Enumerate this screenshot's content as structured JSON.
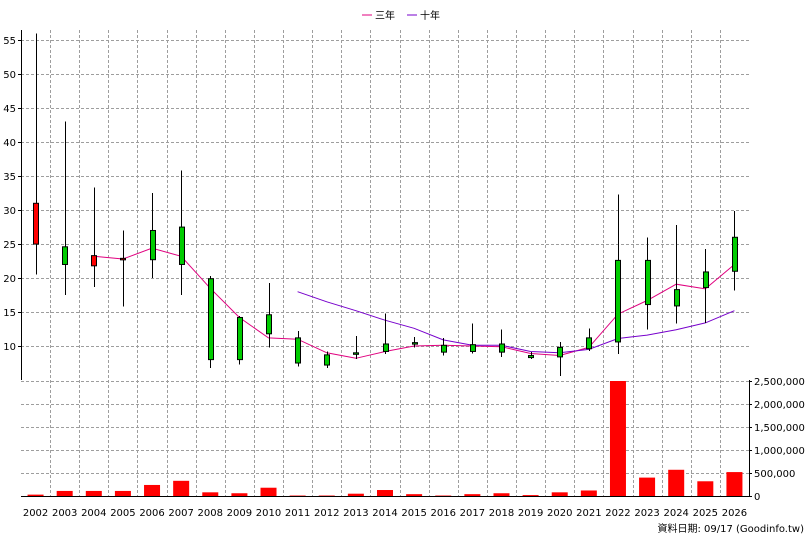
{
  "chart_data": {
    "type": "candlestick+bar",
    "legend": [
      {
        "name": "三年",
        "color": "#e0007f"
      },
      {
        "name": "十年",
        "color": "#7700cc"
      }
    ],
    "legend_position": "top-center",
    "grid": true,
    "years": [
      "2002",
      "2003",
      "2004",
      "2005",
      "2006",
      "2007",
      "2008",
      "2009",
      "2010",
      "2011",
      "2012",
      "2013",
      "2014",
      "2015",
      "2016",
      "2017",
      "2018",
      "2019",
      "2020",
      "2021",
      "2022",
      "2023",
      "2024",
      "2025",
      "2026"
    ],
    "price_axis": {
      "ylim": [
        5,
        56.5
      ],
      "ticks": [
        10,
        15,
        20,
        25,
        30,
        35,
        40,
        45,
        50,
        55
      ],
      "position": "left"
    },
    "volume_axis": {
      "ylim": [
        0,
        2500000
      ],
      "ticks": [
        0,
        500000,
        1000000,
        1500000,
        2000000,
        2500000
      ],
      "tick_labels": [
        "0",
        "500,000",
        "1,000,000",
        "1,500,000",
        "2,000,000",
        "2,500,000"
      ],
      "position": "right"
    },
    "candles": [
      {
        "open": 25,
        "close": 31,
        "high": 56,
        "low": 20.5
      },
      {
        "open": 24.6,
        "close": 22,
        "high": 43,
        "low": 17.5
      },
      {
        "open": 21.8,
        "close": 23.3,
        "high": 33.3,
        "low": 18.7
      },
      {
        "open": 22.8,
        "close": 22.9,
        "high": 27,
        "low": 15.8
      },
      {
        "open": 27,
        "close": 22.7,
        "high": 32.5,
        "low": 20
      },
      {
        "open": 27.5,
        "close": 22,
        "high": 35.8,
        "low": 17.5
      },
      {
        "open": 19.9,
        "close": 8,
        "high": 20.3,
        "low": 6.8
      },
      {
        "open": 14.2,
        "close": 8,
        "high": 14.4,
        "low": 7.3
      },
      {
        "open": 14.6,
        "close": 11.8,
        "high": 19.3,
        "low": 9.8
      },
      {
        "open": 11.2,
        "close": 7.5,
        "high": 12.2,
        "low": 7
      },
      {
        "open": 8.7,
        "close": 7.2,
        "high": 9.2,
        "low": 6.8
      },
      {
        "open": 9,
        "close": 8.9,
        "high": 11.5,
        "low": 8.1
      },
      {
        "open": 10.3,
        "close": 9.2,
        "high": 14.8,
        "low": 8.8
      },
      {
        "open": 10.5,
        "close": 10.3,
        "high": 11.3,
        "low": 9.8
      },
      {
        "open": 10.1,
        "close": 9.1,
        "high": 11.2,
        "low": 8.6
      },
      {
        "open": 10.2,
        "close": 9.2,
        "high": 13.3,
        "low": 8.9
      },
      {
        "open": 10.3,
        "close": 9.1,
        "high": 12.4,
        "low": 8.4
      },
      {
        "open": 8.6,
        "close": 8.3,
        "high": 9.1,
        "low": 8.1
      },
      {
        "open": 9.8,
        "close": 8.4,
        "high": 10.6,
        "low": 5.6
      },
      {
        "open": 11.2,
        "close": 9.6,
        "high": 12.6,
        "low": 9.3
      },
      {
        "open": 22.6,
        "close": 10.6,
        "high": 32.3,
        "low": 8.8
      },
      {
        "open": 22.6,
        "close": 16.1,
        "high": 26,
        "low": 12.4
      },
      {
        "open": 18.3,
        "close": 15.9,
        "high": 27.8,
        "low": 13.3
      },
      {
        "open": 20.9,
        "close": 18.6,
        "high": 24.3,
        "low": 13.4
      },
      {
        "open": 26,
        "close": 21,
        "high": 29.9,
        "low": 18.2
      }
    ],
    "series": [
      {
        "name": "三年",
        "values": [
          null,
          null,
          23.2,
          22.8,
          24.4,
          23.2,
          18.5,
          14.2,
          11.2,
          11,
          9,
          8.2,
          9.2,
          10,
          10.1,
          10,
          9.9,
          8.9,
          8.6,
          9.8,
          14.7,
          16.7,
          19.1,
          18.4,
          22
        ]
      },
      {
        "name": "十年",
        "values": [
          null,
          null,
          null,
          null,
          null,
          null,
          null,
          null,
          null,
          18,
          16.5,
          15.2,
          13.8,
          12.6,
          10.9,
          10.1,
          10.1,
          9.2,
          9,
          9.5,
          11.1,
          11.6,
          12.4,
          13.4,
          15.2
        ]
      }
    ],
    "volume": [
      30000,
      110000,
      110000,
      110000,
      240000,
      330000,
      80000,
      60000,
      180000,
      10000,
      10000,
      50000,
      130000,
      40000,
      10000,
      40000,
      60000,
      20000,
      80000,
      120000,
      2500000,
      400000,
      570000,
      320000,
      520000
    ],
    "footer_note": "資料日期: 09/17  (Goodinfo.tw)",
    "colors": {
      "up": "#ff0000",
      "down": "#00cc00",
      "volume": "#ff0000",
      "grid": "#9e9e9e",
      "axis": "#000000"
    }
  }
}
